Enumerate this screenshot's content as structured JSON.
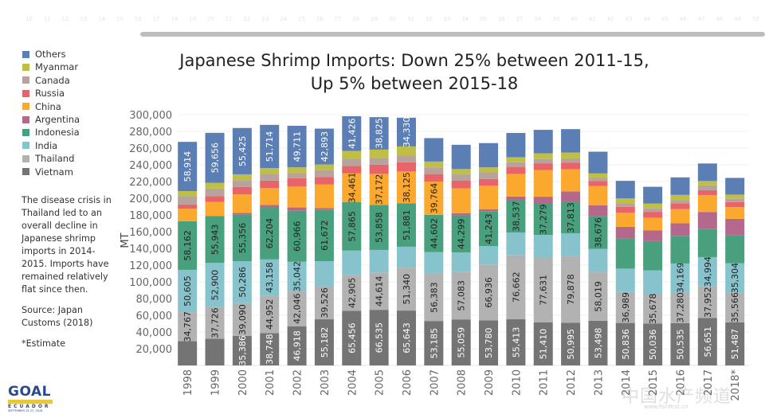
{
  "ruler_numbers": [
    "10",
    "11",
    "12",
    "13",
    "14",
    "15",
    "16",
    "17",
    "18",
    "19",
    "20",
    "21",
    "22",
    "23",
    "24",
    "25",
    "26",
    "27",
    "28",
    "29",
    "30",
    "31",
    "32",
    "33",
    "34",
    "35",
    "36",
    "37",
    "38",
    "39",
    "40",
    "41",
    "42",
    "43",
    "44",
    "45",
    "46",
    "47",
    "48",
    "49",
    "50"
  ],
  "legend": [
    {
      "name": "Others",
      "color": "#5b7fb5"
    },
    {
      "name": "Myanmar",
      "color": "#bfbf46"
    },
    {
      "name": "Canada",
      "color": "#b7a39b"
    },
    {
      "name": "Russia",
      "color": "#e8636a"
    },
    {
      "name": "China",
      "color": "#fba82e"
    },
    {
      "name": "Argentina",
      "color": "#b4698c"
    },
    {
      "name": "Indonesia",
      "color": "#48a07e"
    },
    {
      "name": "India",
      "color": "#87c3cd"
    },
    {
      "name": "Thailand",
      "color": "#b2b2b2"
    },
    {
      "name": "Vietnam",
      "color": "#747474"
    }
  ],
  "side_note": {
    "body": "The disease crisis in Thailand led to an overall decline in Japanese shrimp imports in 2014-2015. Imports have remained relatively flat since then.",
    "source": "Source: Japan Customs (2018)",
    "estimate": "*Estimate"
  },
  "logo": {
    "main": "GOAL",
    "band": "GUAYAQUIL",
    "country": "ECUADOR",
    "date": "SEPTEMBER 25-27, 2018"
  },
  "watermark": {
    "text": "中国水产频道",
    "url": "www.fishfirst.cn"
  },
  "chart_data": {
    "type": "bar",
    "stacked": true,
    "title": "Japanese Shrimp Imports: Down 25% between 2011-15,",
    "subtitle": "Up 5% between 2015-18",
    "xlabel": "",
    "ylabel": "MT",
    "ylim": [
      0,
      300000
    ],
    "yticks": [
      20000,
      40000,
      60000,
      80000,
      100000,
      120000,
      140000,
      160000,
      180000,
      200000,
      220000,
      240000,
      260000,
      280000,
      300000
    ],
    "ytick_labels": [
      "20,000",
      "40,000",
      "60,000",
      "80,000",
      "100,000",
      "120,000",
      "140,000",
      "160,000",
      "180,000",
      "200,000",
      "220,000",
      "240,000",
      "260,000",
      "280,000",
      "300,000"
    ],
    "grid": true,
    "legend_position": "left",
    "categories": [
      "1998",
      "1999",
      "2000",
      "2001",
      "2002",
      "2003",
      "2004",
      "2005",
      "2006",
      "2007",
      "2008",
      "2009",
      "2010",
      "2011",
      "2012",
      "2013",
      "2014",
      "2015",
      "2016",
      "2017",
      "2018*"
    ],
    "series": [
      {
        "name": "Vietnam",
        "values": [
          29000,
          32000,
          35386,
          38748,
          46918,
          55182,
          65456,
          66535,
          65643,
          53185,
          55059,
          53780,
          55413,
          51410,
          50995,
          53498,
          50836,
          50036,
          50535,
          56651,
          51487
        ],
        "labels": [
          "",
          "",
          "35,386",
          "38,748",
          "46,918",
          "55,182",
          "65,456",
          "66,535",
          "65,643",
          "53,185",
          "55,059",
          "53,780",
          "55,413",
          "51,410",
          "50,995",
          "53,498",
          "50,836",
          "50,036",
          "50,535",
          "56,651",
          "51,487"
        ]
      },
      {
        "name": "Thailand",
        "values": [
          34767,
          37726,
          39090,
          44952,
          42046,
          39526,
          42905,
          44614,
          51340,
          56383,
          57083,
          66936,
          76662,
          77631,
          79878,
          58019,
          36989,
          35678,
          37280,
          37952,
          35566
        ],
        "labels": [
          "34,767",
          "37,726",
          "39,090",
          "44,952",
          "42,046",
          "39,526",
          "42,905",
          "44,614",
          "51,340",
          "56,383",
          "57,083",
          "66,936",
          "76,662",
          "77,631",
          "79,878",
          "58,019",
          "36,989",
          "35,678",
          "37,280",
          "37,952",
          "35,566"
        ]
      },
      {
        "name": "India",
        "values": [
          50605,
          52900,
          50286,
          43158,
          35042,
          30000,
          29000,
          27000,
          25000,
          26000,
          23000,
          22000,
          27000,
          27000,
          27000,
          28000,
          28000,
          28000,
          34169,
          34994,
          35304
        ],
        "labels": [
          "50,605",
          "52,900",
          "50,286",
          "43,158",
          "35,042",
          "",
          "",
          "",
          "",
          "",
          "",
          "",
          "",
          "",
          "",
          "",
          "",
          "",
          "34,169",
          "34,994",
          "35,304"
        ]
      },
      {
        "name": "Indonesia",
        "values": [
          58162,
          55943,
          55356,
          62204,
          60966,
          61672,
          57865,
          53858,
          51881,
          44602,
          44299,
          41243,
          38537,
          37279,
          37813,
          38676,
          36000,
          35000,
          33000,
          34000,
          33000
        ],
        "labels": [
          "58,162",
          "55,943",
          "55,356",
          "62,204",
          "60,966",
          "61,672",
          "57,865",
          "53,858",
          "51,881",
          "44,602",
          "44,299",
          "41,243",
          "38,537",
          "37,279",
          "37,813",
          "38,676",
          "",
          "",
          "",
          "",
          ""
        ]
      },
      {
        "name": "Argentina",
        "values": [
          0,
          0,
          2500,
          3000,
          4000,
          2000,
          0,
          0,
          0,
          0,
          2500,
          3000,
          4500,
          8500,
          12500,
          13500,
          14000,
          13000,
          15000,
          20000,
          20000
        ],
        "labels": [
          "",
          "",
          "",
          "",
          "",
          "",
          "",
          "",
          "",
          "",
          "",
          "",
          "",
          "",
          "",
          "",
          "",
          "",
          "",
          "",
          ""
        ]
      },
      {
        "name": "China",
        "values": [
          15000,
          17000,
          22000,
          20000,
          25000,
          28000,
          34461,
          37172,
          38125,
          39764,
          30000,
          28000,
          27000,
          32000,
          26500,
          23000,
          17000,
          15000,
          17000,
          20000,
          14000
        ],
        "labels": [
          "",
          "",
          "",
          "",
          "",
          "",
          "34,461",
          "37,172",
          "38,125",
          "39,764",
          "",
          "",
          "",
          "",
          "",
          "",
          "",
          "",
          "",
          "",
          ""
        ]
      },
      {
        "name": "Russia",
        "values": [
          5000,
          7000,
          9000,
          9000,
          10000,
          9000,
          9000,
          11000,
          11000,
          9000,
          9000,
          8000,
          8000,
          8000,
          8000,
          6000,
          7000,
          7000,
          7000,
          6000,
          6000
        ]
      },
      {
        "name": "Canada",
        "values": [
          10000,
          9000,
          8000,
          8000,
          6000,
          8000,
          8000,
          8000,
          8000,
          8000,
          8000,
          8000,
          6000,
          5000,
          5000,
          4000,
          4000,
          4000,
          4000,
          6000,
          4000
        ]
      },
      {
        "name": "Myanmar",
        "values": [
          6000,
          7000,
          7000,
          7000,
          7000,
          7000,
          10000,
          10000,
          11000,
          7000,
          6000,
          6000,
          6000,
          7000,
          7000,
          5000,
          6000,
          6000,
          6000,
          5000,
          5000
        ]
      },
      {
        "name": "Others",
        "values": [
          58914,
          59656,
          55425,
          51714,
          49711,
          42893,
          41426,
          38825,
          34330,
          28000,
          29000,
          29000,
          29000,
          28000,
          28000,
          26000,
          21000,
          20000,
          21000,
          21000,
          20000
        ],
        "labels": [
          "58,914",
          "59,656",
          "55,425",
          "51,714",
          "49,711",
          "42,893",
          "41,426",
          "38,825",
          "34,330",
          "",
          "",
          "",
          "",
          "",
          "",
          "",
          "",
          "",
          "",
          "",
          ""
        ]
      }
    ]
  }
}
